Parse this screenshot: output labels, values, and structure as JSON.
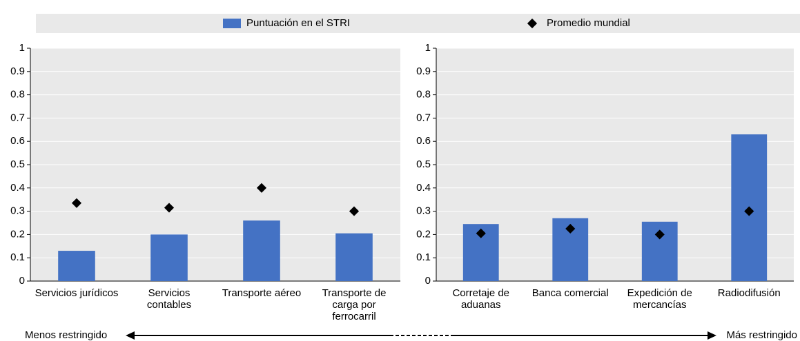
{
  "chart_data": [
    {
      "type": "bar",
      "categories": [
        "Servicios jurídicos",
        "Servicios contables",
        "Transporte aéreo",
        "Transporte de carga por ferrocarril"
      ],
      "series": [
        {
          "name": "Puntuación en el STRI",
          "color": "#4472c4",
          "values": [
            0.13,
            0.2,
            0.26,
            0.205
          ]
        },
        {
          "name": "Promedio mundial",
          "color": "#000000",
          "marker": "diamond",
          "values": [
            0.335,
            0.315,
            0.4,
            0.3
          ]
        }
      ],
      "ylim": [
        0,
        1
      ],
      "yticks": [
        0,
        0.1,
        0.2,
        0.3,
        0.4,
        0.5,
        0.6,
        0.7,
        0.8,
        0.9,
        1
      ],
      "grid": true
    },
    {
      "type": "bar",
      "categories": [
        "Corretaje de aduanas",
        "Banca comercial",
        "Expedición de mercancías",
        "Radiodifusión"
      ],
      "series": [
        {
          "color": "#4472c4",
          "values": [
            0.245,
            0.27,
            0.255,
            0.63
          ]
        },
        {
          "color": "#000000",
          "marker": "diamond",
          "values": [
            0.205,
            0.225,
            0.2,
            0.3
          ]
        }
      ],
      "ylim": [
        0,
        1
      ],
      "yticks": [
        0,
        0.1,
        0.2,
        0.3,
        0.4,
        0.5,
        0.6,
        0.7,
        0.8,
        0.9,
        1
      ],
      "grid": true
    }
  ],
  "annotations": [
    "Menos restringido",
    "Más restringido"
  ]
}
